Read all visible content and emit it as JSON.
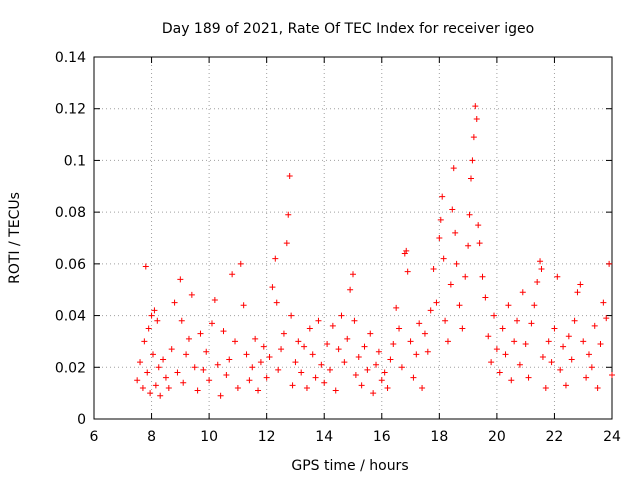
{
  "chart_data": {
    "type": "scatter",
    "title": "Day 189 of 2021, Rate Of TEC Index for receiver igeo",
    "xlabel": "GPS time / hours",
    "ylabel": "ROTI / TECUs",
    "xlim": [
      6,
      24
    ],
    "ylim": [
      0,
      0.14
    ],
    "xticks": [
      6,
      8,
      10,
      12,
      14,
      16,
      18,
      20,
      22,
      24
    ],
    "xtick_labels": [
      "6",
      "8",
      "10",
      "12",
      "14",
      "16",
      "18",
      "20",
      "22",
      "24"
    ],
    "yticks": [
      0,
      0.02,
      0.04,
      0.06,
      0.08,
      0.1,
      0.12,
      0.14
    ],
    "ytick_labels": [
      "0",
      "0.02",
      "0.04",
      "0.06",
      "0.08",
      "0.1",
      "0.12",
      "0.14"
    ],
    "grid": true,
    "marker": "+",
    "color": "#ff0000",
    "series": [
      {
        "name": "ROTI",
        "points": [
          [
            7.5,
            0.015
          ],
          [
            7.6,
            0.022
          ],
          [
            7.7,
            0.012
          ],
          [
            7.75,
            0.03
          ],
          [
            7.8,
            0.059
          ],
          [
            7.85,
            0.018
          ],
          [
            7.9,
            0.035
          ],
          [
            7.95,
            0.01
          ],
          [
            8.0,
            0.04
          ],
          [
            8.05,
            0.025
          ],
          [
            8.1,
            0.042
          ],
          [
            8.15,
            0.013
          ],
          [
            8.2,
            0.038
          ],
          [
            8.25,
            0.02
          ],
          [
            8.3,
            0.009
          ],
          [
            8.4,
            0.023
          ],
          [
            8.5,
            0.016
          ],
          [
            8.6,
            0.012
          ],
          [
            8.7,
            0.027
          ],
          [
            8.8,
            0.045
          ],
          [
            8.9,
            0.018
          ],
          [
            9.0,
            0.054
          ],
          [
            9.05,
            0.038
          ],
          [
            9.1,
            0.014
          ],
          [
            9.2,
            0.025
          ],
          [
            9.3,
            0.031
          ],
          [
            9.4,
            0.048
          ],
          [
            9.5,
            0.02
          ],
          [
            9.6,
            0.011
          ],
          [
            9.7,
            0.033
          ],
          [
            9.8,
            0.019
          ],
          [
            9.9,
            0.026
          ],
          [
            10.0,
            0.015
          ],
          [
            10.1,
            0.037
          ],
          [
            10.2,
            0.046
          ],
          [
            10.3,
            0.021
          ],
          [
            10.4,
            0.009
          ],
          [
            10.5,
            0.034
          ],
          [
            10.6,
            0.017
          ],
          [
            10.7,
            0.023
          ],
          [
            10.8,
            0.056
          ],
          [
            10.9,
            0.03
          ],
          [
            11.0,
            0.012
          ],
          [
            11.1,
            0.06
          ],
          [
            11.2,
            0.044
          ],
          [
            11.3,
            0.025
          ],
          [
            11.4,
            0.015
          ],
          [
            11.5,
            0.02
          ],
          [
            11.6,
            0.031
          ],
          [
            11.7,
            0.011
          ],
          [
            11.8,
            0.022
          ],
          [
            11.9,
            0.028
          ],
          [
            12.0,
            0.016
          ],
          [
            12.1,
            0.024
          ],
          [
            12.2,
            0.051
          ],
          [
            12.3,
            0.062
          ],
          [
            12.35,
            0.045
          ],
          [
            12.4,
            0.019
          ],
          [
            12.5,
            0.027
          ],
          [
            12.6,
            0.033
          ],
          [
            12.7,
            0.068
          ],
          [
            12.75,
            0.079
          ],
          [
            12.8,
            0.094
          ],
          [
            12.85,
            0.04
          ],
          [
            12.9,
            0.013
          ],
          [
            13.0,
            0.022
          ],
          [
            13.1,
            0.03
          ],
          [
            13.2,
            0.018
          ],
          [
            13.3,
            0.028
          ],
          [
            13.4,
            0.012
          ],
          [
            13.5,
            0.035
          ],
          [
            13.6,
            0.025
          ],
          [
            13.7,
            0.016
          ],
          [
            13.8,
            0.038
          ],
          [
            13.9,
            0.021
          ],
          [
            14.0,
            0.014
          ],
          [
            14.1,
            0.029
          ],
          [
            14.2,
            0.019
          ],
          [
            14.3,
            0.036
          ],
          [
            14.4,
            0.011
          ],
          [
            14.5,
            0.027
          ],
          [
            14.6,
            0.04
          ],
          [
            14.7,
            0.022
          ],
          [
            14.8,
            0.031
          ],
          [
            14.9,
            0.05
          ],
          [
            15.0,
            0.056
          ],
          [
            15.05,
            0.038
          ],
          [
            15.1,
            0.017
          ],
          [
            15.2,
            0.024
          ],
          [
            15.3,
            0.013
          ],
          [
            15.4,
            0.028
          ],
          [
            15.5,
            0.019
          ],
          [
            15.6,
            0.033
          ],
          [
            15.7,
            0.01
          ],
          [
            15.8,
            0.021
          ],
          [
            15.9,
            0.026
          ],
          [
            16.0,
            0.015
          ],
          [
            16.1,
            0.018
          ],
          [
            16.2,
            0.012
          ],
          [
            16.3,
            0.023
          ],
          [
            16.4,
            0.029
          ],
          [
            16.5,
            0.043
          ],
          [
            16.6,
            0.035
          ],
          [
            16.7,
            0.02
          ],
          [
            16.8,
            0.064
          ],
          [
            16.85,
            0.065
          ],
          [
            16.9,
            0.057
          ],
          [
            17.0,
            0.03
          ],
          [
            17.1,
            0.016
          ],
          [
            17.2,
            0.025
          ],
          [
            17.3,
            0.037
          ],
          [
            17.4,
            0.012
          ],
          [
            17.5,
            0.033
          ],
          [
            17.6,
            0.026
          ],
          [
            17.7,
            0.042
          ],
          [
            17.8,
            0.058
          ],
          [
            17.9,
            0.045
          ],
          [
            18.0,
            0.07
          ],
          [
            18.05,
            0.077
          ],
          [
            18.1,
            0.086
          ],
          [
            18.15,
            0.062
          ],
          [
            18.2,
            0.038
          ],
          [
            18.3,
            0.03
          ],
          [
            18.4,
            0.052
          ],
          [
            18.45,
            0.081
          ],
          [
            18.5,
            0.097
          ],
          [
            18.55,
            0.072
          ],
          [
            18.6,
            0.06
          ],
          [
            18.7,
            0.044
          ],
          [
            18.8,
            0.035
          ],
          [
            18.9,
            0.055
          ],
          [
            19.0,
            0.067
          ],
          [
            19.05,
            0.079
          ],
          [
            19.1,
            0.093
          ],
          [
            19.15,
            0.1
          ],
          [
            19.2,
            0.109
          ],
          [
            19.25,
            0.121
          ],
          [
            19.3,
            0.116
          ],
          [
            19.35,
            0.075
          ],
          [
            19.4,
            0.068
          ],
          [
            19.5,
            0.055
          ],
          [
            19.6,
            0.047
          ],
          [
            19.7,
            0.032
          ],
          [
            19.8,
            0.022
          ],
          [
            19.9,
            0.04
          ],
          [
            20.0,
            0.027
          ],
          [
            20.1,
            0.018
          ],
          [
            20.2,
            0.035
          ],
          [
            20.3,
            0.025
          ],
          [
            20.4,
            0.044
          ],
          [
            20.5,
            0.015
          ],
          [
            20.6,
            0.03
          ],
          [
            20.7,
            0.038
          ],
          [
            20.8,
            0.021
          ],
          [
            20.9,
            0.049
          ],
          [
            21.0,
            0.029
          ],
          [
            21.1,
            0.016
          ],
          [
            21.2,
            0.037
          ],
          [
            21.3,
            0.044
          ],
          [
            21.4,
            0.053
          ],
          [
            21.5,
            0.061
          ],
          [
            21.55,
            0.058
          ],
          [
            21.6,
            0.024
          ],
          [
            21.7,
            0.012
          ],
          [
            21.8,
            0.03
          ],
          [
            21.9,
            0.022
          ],
          [
            22.0,
            0.035
          ],
          [
            22.1,
            0.055
          ],
          [
            22.2,
            0.019
          ],
          [
            22.3,
            0.028
          ],
          [
            22.4,
            0.013
          ],
          [
            22.5,
            0.032
          ],
          [
            22.6,
            0.023
          ],
          [
            22.7,
            0.038
          ],
          [
            22.8,
            0.049
          ],
          [
            22.9,
            0.052
          ],
          [
            23.0,
            0.03
          ],
          [
            23.1,
            0.016
          ],
          [
            23.2,
            0.025
          ],
          [
            23.3,
            0.02
          ],
          [
            23.4,
            0.036
          ],
          [
            23.5,
            0.012
          ],
          [
            23.6,
            0.029
          ],
          [
            23.7,
            0.045
          ],
          [
            23.8,
            0.039
          ],
          [
            23.9,
            0.06
          ],
          [
            24.0,
            0.017
          ]
        ]
      }
    ]
  }
}
